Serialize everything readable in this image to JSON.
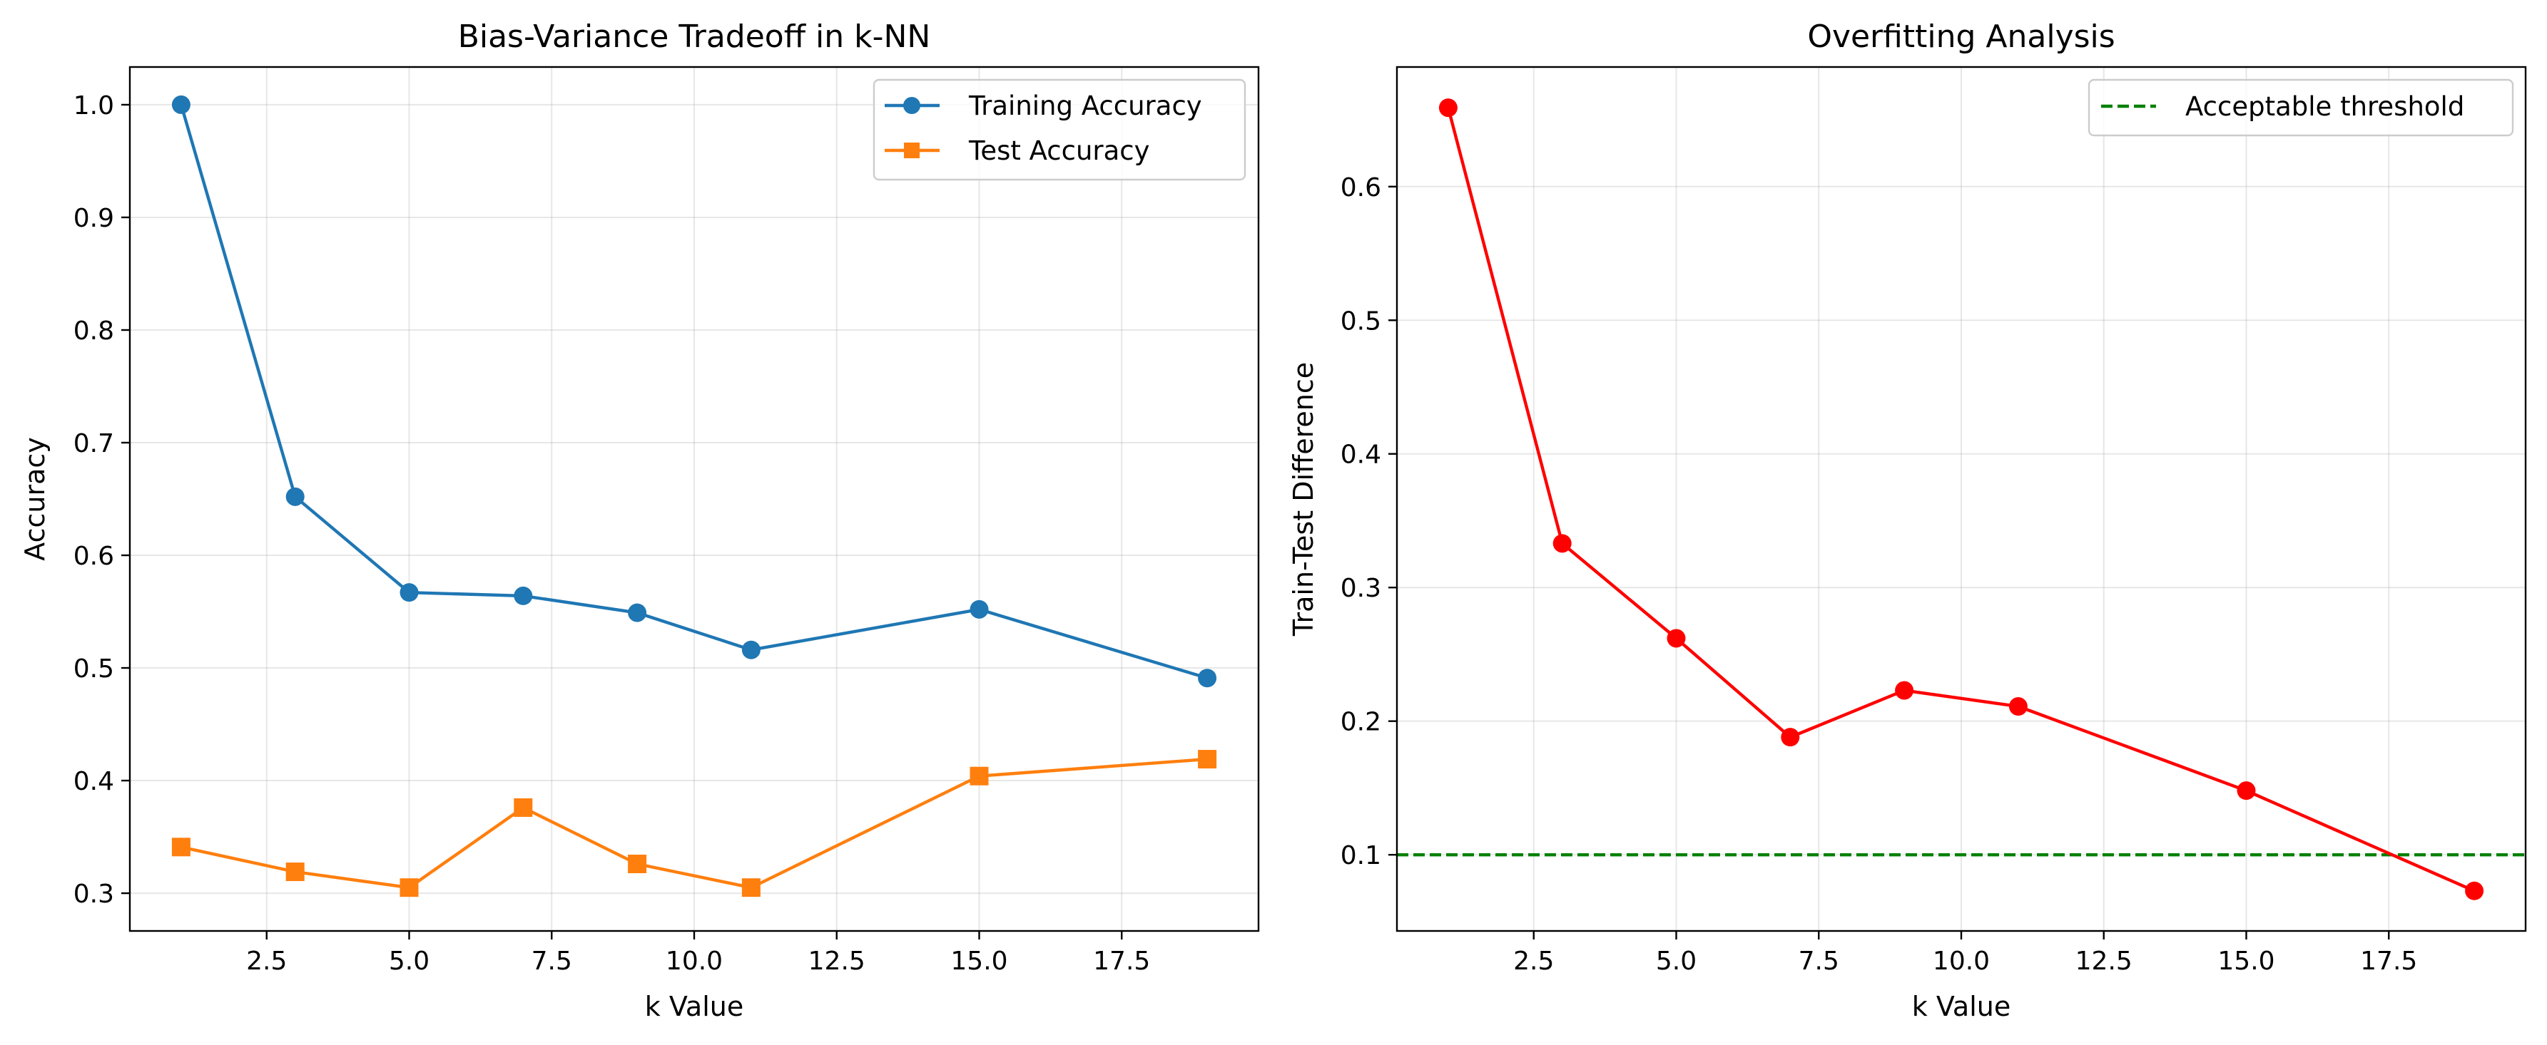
{
  "chart_data": [
    {
      "type": "line",
      "title": "Bias-Variance Tradeoff in k-NN",
      "xlabel": "k Value",
      "ylabel": "Accuracy",
      "xlim": [
        0.1,
        19.9
      ],
      "ylim": [
        0.2665,
        1.0335
      ],
      "xticks": [
        2.5,
        5.0,
        7.5,
        10.0,
        12.5,
        15.0,
        17.5
      ],
      "xtick_labels": [
        "2.5",
        "5.0",
        "7.5",
        "10.0",
        "12.5",
        "15.0",
        "17.5"
      ],
      "yticks": [
        0.3,
        0.4,
        0.5,
        0.6,
        0.7,
        0.8,
        0.9,
        1.0
      ],
      "ytick_labels": [
        "0.3",
        "0.4",
        "0.5",
        "0.6",
        "0.7",
        "0.8",
        "0.9",
        "1.0"
      ],
      "grid": true,
      "legend_position": "upper right",
      "x": [
        1,
        3,
        5,
        7,
        9,
        11,
        15,
        19
      ],
      "series": [
        {
          "name": "Training Accuracy",
          "color": "#1f77b4",
          "marker": "circle",
          "linestyle": "solid",
          "values": [
            1.0,
            0.652,
            0.567,
            0.564,
            0.549,
            0.516,
            0.552,
            0.491
          ]
        },
        {
          "name": "Test Accuracy",
          "color": "#ff7f0e",
          "marker": "square",
          "linestyle": "solid",
          "values": [
            0.341,
            0.319,
            0.305,
            0.376,
            0.326,
            0.305,
            0.404,
            0.419
          ]
        }
      ]
    },
    {
      "type": "line",
      "title": "Overfitting Analysis",
      "xlabel": "k Value",
      "ylabel": "Train-Test Difference",
      "xlim": [
        0.1,
        19.9
      ],
      "ylim": [
        0.043,
        0.6895
      ],
      "xticks": [
        2.5,
        5.0,
        7.5,
        10.0,
        12.5,
        15.0,
        17.5
      ],
      "xtick_labels": [
        "2.5",
        "5.0",
        "7.5",
        "10.0",
        "12.5",
        "15.0",
        "17.5"
      ],
      "yticks": [
        0.1,
        0.2,
        0.3,
        0.4,
        0.5,
        0.6
      ],
      "ytick_labels": [
        "0.1",
        "0.2",
        "0.3",
        "0.4",
        "0.5",
        "0.6"
      ],
      "grid": true,
      "legend_position": "upper right",
      "x": [
        1,
        3,
        5,
        7,
        9,
        11,
        15,
        19
      ],
      "series": [
        {
          "color": "#ff0000",
          "marker": "circle",
          "linestyle": "solid",
          "values": [
            0.659,
            0.333,
            0.262,
            0.188,
            0.223,
            0.211,
            0.148,
            0.073
          ]
        }
      ],
      "hlines": [
        {
          "name": "Acceptable threshold",
          "y": 0.1,
          "color": "#008000",
          "linestyle": "dashed"
        }
      ]
    }
  ]
}
